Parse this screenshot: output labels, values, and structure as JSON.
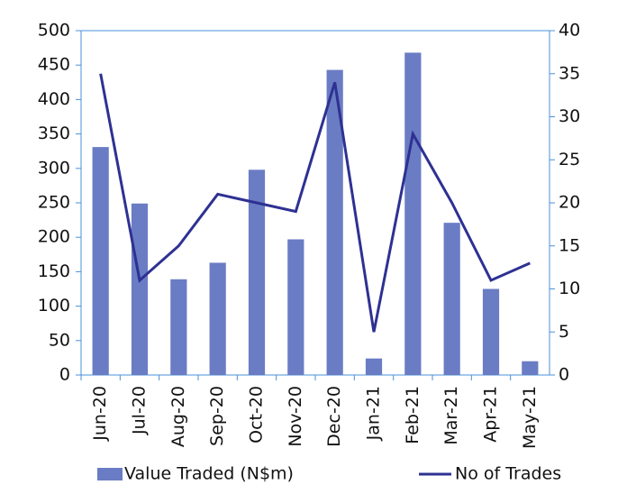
{
  "chart_data": {
    "type": "bar-line",
    "categories": [
      "Jun-20",
      "Jul-20",
      "Aug-20",
      "Sep-20",
      "Oct-20",
      "Nov-20",
      "Dec-20",
      "Jan-21",
      "Feb-21",
      "Mar-21",
      "Apr-21",
      "May-21"
    ],
    "series": [
      {
        "name": "Value Traded (N$m)",
        "type": "bar",
        "color": "#6a7cc4",
        "values": [
          331,
          249,
          139,
          163,
          298,
          197,
          443,
          24,
          468,
          221,
          125,
          20
        ]
      },
      {
        "name": "No of Trades",
        "type": "line",
        "axis": "y2",
        "color": "#2e3192",
        "values": [
          35,
          11,
          15,
          21,
          20,
          19,
          34,
          5,
          28,
          20,
          11,
          13
        ]
      }
    ],
    "ylim": [
      0,
      500
    ],
    "yticks": [
      0,
      50,
      100,
      150,
      200,
      250,
      300,
      350,
      400,
      450,
      500
    ],
    "y2lim": [
      0,
      40
    ],
    "y2ticks": [
      0,
      5,
      10,
      15,
      20,
      25,
      30,
      35,
      40
    ],
    "legend": "bottom"
  }
}
